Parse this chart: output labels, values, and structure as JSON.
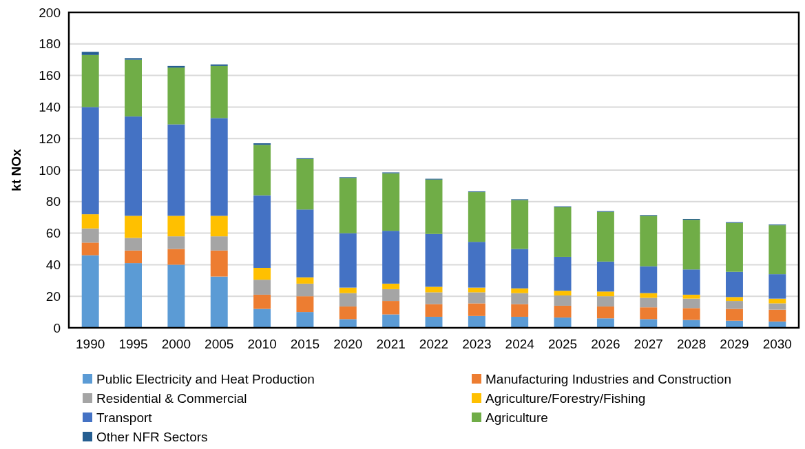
{
  "chart_data": {
    "type": "bar",
    "stacked": true,
    "ylabel": "kt NOx",
    "categories": [
      "1990",
      "1995",
      "2000",
      "2005",
      "2010",
      "2015",
      "2020",
      "2021",
      "2022",
      "2023",
      "2024",
      "2025",
      "2026",
      "2027",
      "2028",
      "2029",
      "2030"
    ],
    "series": [
      {
        "name": "Public Electricity and Heat Production",
        "color": "#5b9bd5",
        "values": [
          46,
          41,
          40,
          32.5,
          12,
          10,
          5.5,
          8.5,
          7,
          7.5,
          7,
          6.5,
          6,
          5.5,
          5,
          4.5,
          4
        ]
      },
      {
        "name": "Manufacturing Industries and Construction",
        "color": "#ed7d31",
        "values": [
          8,
          8,
          10,
          16.5,
          9,
          10,
          8,
          8.5,
          8,
          8,
          8,
          7.5,
          7.5,
          7.5,
          7.5,
          7.5,
          7.5
        ]
      },
      {
        "name": "Residential & Commercial",
        "color": "#a5a5a5",
        "values": [
          9,
          8,
          8,
          9,
          9.5,
          8,
          8.5,
          7.5,
          7.5,
          7,
          7,
          6.5,
          6.5,
          6,
          6,
          5,
          4
        ]
      },
      {
        "name": "Agriculture/Forestry/Fishing",
        "color": "#ffc000",
        "values": [
          9,
          14,
          13,
          13,
          7.5,
          4,
          3.5,
          3.5,
          3.5,
          3,
          3,
          3,
          3,
          3,
          2.5,
          2.5,
          3
        ]
      },
      {
        "name": "Transport",
        "color": "#4472c4",
        "values": [
          68,
          63,
          58,
          62,
          46,
          43,
          34.5,
          33.5,
          33.5,
          29,
          25,
          21.5,
          19,
          17,
          16,
          16,
          15.5
        ]
      },
      {
        "name": "Agriculture",
        "color": "#70ad47",
        "values": [
          33,
          36,
          36,
          33,
          32,
          32,
          35,
          36.5,
          34.5,
          31.5,
          31,
          31.5,
          31.5,
          32,
          31.5,
          31,
          31
        ]
      },
      {
        "name": "Other NFR Sectors",
        "color": "#255e91",
        "values": [
          2,
          1,
          1,
          1,
          1,
          0.5,
          0.5,
          0.5,
          0.5,
          0.5,
          0.5,
          0.5,
          0.5,
          0.5,
          0.5,
          0.5,
          0.5
        ]
      }
    ],
    "ylim": [
      0,
      200
    ],
    "yticks": [
      0,
      20,
      40,
      60,
      80,
      100,
      120,
      140,
      160,
      180,
      200
    ],
    "grid": "y",
    "legend": "bottom"
  }
}
